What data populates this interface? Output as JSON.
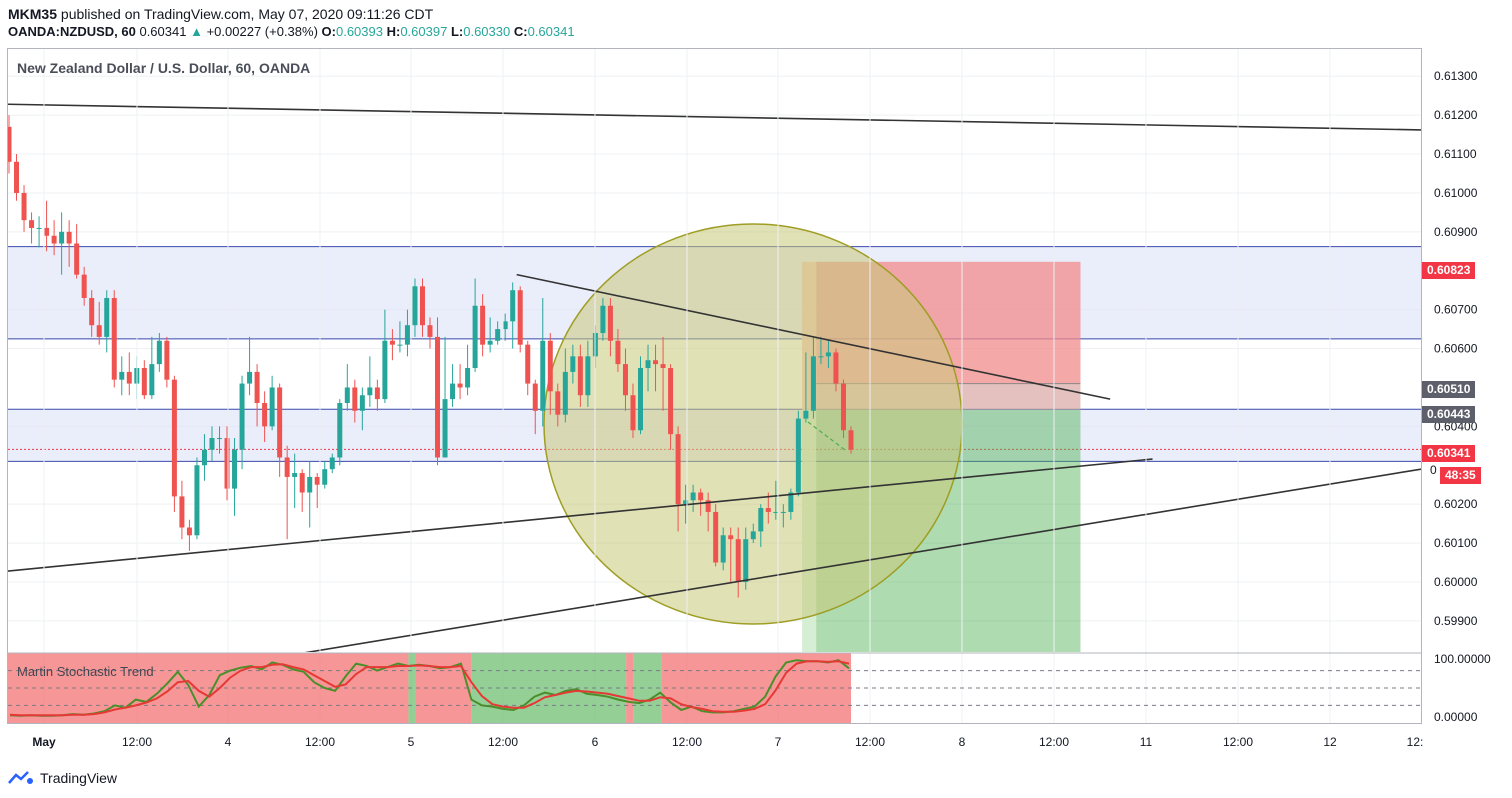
{
  "header": {
    "publisher": "MKM35",
    "published_text": "published on TradingView.com, May 07, 2020 09:11:26 CDT",
    "symbol": "OANDA:NZDUSD, 60",
    "last_price": "0.60341",
    "change_icon": "triangle-up",
    "change": "+0.00227 (+0.38%)",
    "o_label": "O:",
    "o_value": "0.60393",
    "h_label": "H:",
    "h_value": "0.60397",
    "l_label": "L:",
    "l_value": "0.60330",
    "c_label": "C:",
    "c_value": "0.60341"
  },
  "pane_title": "New Zealand Dollar / U.S. Dollar, 60, OANDA",
  "indicator": {
    "name": "Martin Stochastic Trend",
    "scale_labels": [
      "100.00000",
      "0.00000"
    ]
  },
  "price_tags": {
    "stop": "0.60823",
    "entry": "0.60510",
    "level": "0.60443",
    "current": "0.60341",
    "countdown": "48:35",
    "hidden_partial": "0"
  },
  "footer": {
    "brand": "TradingView"
  },
  "colors": {
    "up": "#26a69a",
    "down": "#ef5350",
    "stop_zone": "#f28b8b",
    "target_zone": "#4caf50",
    "zone_band": "#dfe3f7",
    "circle_fill": "#c9c87a",
    "ind_red": "#f46a6a",
    "ind_green": "#66bb6a",
    "tag_red": "#f23645",
    "tag_gray": "#5d606b"
  },
  "chart_data": {
    "type": "candlestick",
    "title": "New Zealand Dollar / U.S. Dollar, 60, OANDA",
    "timeframe": "60",
    "x_ticks": [
      "May",
      "12:00",
      "4",
      "12:00",
      "5",
      "12:00",
      "6",
      "12:00",
      "7",
      "12:00",
      "8",
      "12:00",
      "11",
      "12:00",
      "12",
      "12:"
    ],
    "y_ticks": [
      0.599,
      0.6,
      0.601,
      0.602,
      0.604,
      0.606,
      0.607,
      0.609,
      0.61,
      0.611,
      0.612,
      0.613
    ],
    "y_tick_labels": [
      "0.59900",
      "0.60000",
      "0.60100",
      "0.60200",
      "0.60400",
      "0.60600",
      "0.60700",
      "0.60900",
      "0.61000",
      "0.61100",
      "0.61200",
      "0.61300"
    ],
    "ylim": [
      0.5982,
      0.6137
    ],
    "candles": [
      [
        0.6117,
        0.6108,
        0.612,
        0.6105
      ],
      [
        0.6108,
        0.61,
        0.611,
        0.6098
      ],
      [
        0.61,
        0.6093,
        0.6102,
        0.609
      ],
      [
        0.6093,
        0.6091,
        0.6095,
        0.6087
      ],
      [
        0.6091,
        0.6091,
        0.6094,
        0.6086
      ],
      [
        0.6091,
        0.6089,
        0.6098,
        0.6085
      ],
      [
        0.6089,
        0.6087,
        0.6093,
        0.6084
      ],
      [
        0.6087,
        0.609,
        0.6095,
        0.6079
      ],
      [
        0.609,
        0.6087,
        0.6093,
        0.6081
      ],
      [
        0.6087,
        0.6079,
        0.6092,
        0.6078
      ],
      [
        0.6079,
        0.6073,
        0.6081,
        0.6071
      ],
      [
        0.6073,
        0.6066,
        0.6075,
        0.6063
      ],
      [
        0.6066,
        0.6063,
        0.6072,
        0.6061
      ],
      [
        0.6063,
        0.6073,
        0.6075,
        0.6059
      ],
      [
        0.6073,
        0.6052,
        0.6075,
        0.605
      ],
      [
        0.6052,
        0.6054,
        0.6058,
        0.6048
      ],
      [
        0.6054,
        0.6051,
        0.6059,
        0.6048
      ],
      [
        0.6051,
        0.6055,
        0.6058,
        0.6047
      ],
      [
        0.6055,
        0.6048,
        0.6057,
        0.6047
      ],
      [
        0.6048,
        0.6056,
        0.6063,
        0.6047
      ],
      [
        0.6056,
        0.6062,
        0.6064,
        0.6054
      ],
      [
        0.6062,
        0.6052,
        0.6063,
        0.605
      ],
      [
        0.6052,
        0.6022,
        0.6053,
        0.6018
      ],
      [
        0.6022,
        0.6014,
        0.6026,
        0.6011
      ],
      [
        0.6014,
        0.6012,
        0.6016,
        0.6008
      ],
      [
        0.6012,
        0.603,
        0.6032,
        0.6011
      ],
      [
        0.603,
        0.6034,
        0.6038,
        0.6026
      ],
      [
        0.6034,
        0.6037,
        0.604,
        0.6031
      ],
      [
        0.6037,
        0.6037,
        0.604,
        0.6033
      ],
      [
        0.6037,
        0.6024,
        0.604,
        0.6021
      ],
      [
        0.6024,
        0.6034,
        0.6037,
        0.6017
      ],
      [
        0.6034,
        0.6051,
        0.6053,
        0.6029
      ],
      [
        0.6051,
        0.6054,
        0.6063,
        0.6048
      ],
      [
        0.6054,
        0.6046,
        0.6056,
        0.604
      ],
      [
        0.6046,
        0.604,
        0.6049,
        0.6036
      ],
      [
        0.604,
        0.605,
        0.6053,
        0.6039
      ],
      [
        0.605,
        0.6032,
        0.6051,
        0.6027
      ],
      [
        0.6032,
        0.6027,
        0.6035,
        0.6011
      ],
      [
        0.6027,
        0.6028,
        0.6033,
        0.6019
      ],
      [
        0.6028,
        0.6023,
        0.6029,
        0.6018
      ],
      [
        0.6023,
        0.6027,
        0.6031,
        0.6014
      ],
      [
        0.6027,
        0.6025,
        0.6028,
        0.6019
      ],
      [
        0.6025,
        0.6029,
        0.6031,
        0.6024
      ],
      [
        0.6029,
        0.6032,
        0.6033,
        0.6028
      ],
      [
        0.6032,
        0.6046,
        0.6047,
        0.603
      ],
      [
        0.6046,
        0.605,
        0.6056,
        0.6044
      ],
      [
        0.605,
        0.6044,
        0.6052,
        0.6041
      ],
      [
        0.6044,
        0.6048,
        0.605,
        0.6039
      ],
      [
        0.6048,
        0.605,
        0.6058,
        0.6045
      ],
      [
        0.605,
        0.6047,
        0.6052,
        0.6044
      ],
      [
        0.6047,
        0.6062,
        0.607,
        0.6046
      ],
      [
        0.6062,
        0.6061,
        0.6065,
        0.6057
      ],
      [
        0.6061,
        0.6061,
        0.6067,
        0.6059
      ],
      [
        0.6061,
        0.6066,
        0.607,
        0.6058
      ],
      [
        0.6066,
        0.6076,
        0.6078,
        0.6063
      ],
      [
        0.6076,
        0.6066,
        0.6078,
        0.6063
      ],
      [
        0.6066,
        0.6063,
        0.6068,
        0.606
      ],
      [
        0.6063,
        0.6032,
        0.6068,
        0.603
      ],
      [
        0.6032,
        0.6047,
        0.6063,
        0.6033
      ],
      [
        0.6047,
        0.6051,
        0.6056,
        0.6045
      ],
      [
        0.6051,
        0.605,
        0.6056,
        0.6047
      ],
      [
        0.605,
        0.6055,
        0.6061,
        0.6048
      ],
      [
        0.6055,
        0.6071,
        0.6078,
        0.6054
      ],
      [
        0.6071,
        0.6061,
        0.6074,
        0.6058
      ],
      [
        0.6061,
        0.6062,
        0.6068,
        0.6059
      ],
      [
        0.6062,
        0.6065,
        0.6067,
        0.6061
      ],
      [
        0.6065,
        0.6067,
        0.6069,
        0.6062
      ],
      [
        0.6067,
        0.6075,
        0.6077,
        0.606
      ],
      [
        0.6075,
        0.6061,
        0.6076,
        0.6059
      ],
      [
        0.6061,
        0.6051,
        0.6062,
        0.6048
      ],
      [
        0.6051,
        0.6044,
        0.6052,
        0.6038
      ],
      [
        0.6044,
        0.6062,
        0.6073,
        0.604
      ],
      [
        0.6062,
        0.6049,
        0.6064,
        0.6043
      ],
      [
        0.6049,
        0.6043,
        0.6051,
        0.604
      ],
      [
        0.6043,
        0.6054,
        0.606,
        0.6041
      ],
      [
        0.6054,
        0.6058,
        0.6061,
        0.6051
      ],
      [
        0.6058,
        0.6048,
        0.6061,
        0.6045
      ],
      [
        0.6048,
        0.6058,
        0.6062,
        0.6045
      ],
      [
        0.6058,
        0.6064,
        0.6066,
        0.6055
      ],
      [
        0.6064,
        0.6071,
        0.6073,
        0.6062
      ],
      [
        0.6071,
        0.6062,
        0.6073,
        0.6058
      ],
      [
        0.6062,
        0.6056,
        0.6065,
        0.6054
      ],
      [
        0.6056,
        0.6048,
        0.606,
        0.6044
      ],
      [
        0.6048,
        0.6039,
        0.6051,
        0.6037
      ],
      [
        0.6039,
        0.6055,
        0.6058,
        0.6038
      ],
      [
        0.6055,
        0.6057,
        0.6061,
        0.6049
      ],
      [
        0.6057,
        0.6056,
        0.6061,
        0.6049
      ],
      [
        0.6056,
        0.6055,
        0.6063,
        0.6044
      ],
      [
        0.6055,
        0.6038,
        0.6056,
        0.6034
      ],
      [
        0.6038,
        0.602,
        0.604,
        0.6013
      ],
      [
        0.602,
        0.6021,
        0.6025,
        0.6015
      ],
      [
        0.6021,
        0.6023,
        0.6025,
        0.6018
      ],
      [
        0.6023,
        0.6021,
        0.6024,
        0.6017
      ],
      [
        0.6021,
        0.6018,
        0.6023,
        0.6013
      ],
      [
        0.6018,
        0.6005,
        0.602,
        0.6004
      ],
      [
        0.6005,
        0.6012,
        0.6014,
        0.6003
      ],
      [
        0.6012,
        0.6011,
        0.6014,
        0.6
      ],
      [
        0.6011,
        0.6,
        0.6014,
        0.5996
      ],
      [
        0.6,
        0.6011,
        0.6014,
        0.5998
      ],
      [
        0.6011,
        0.6013,
        0.6015,
        0.601
      ],
      [
        0.6013,
        0.6019,
        0.602,
        0.6009
      ],
      [
        0.6019,
        0.6018,
        0.6023,
        0.6015
      ],
      [
        0.6018,
        0.6018,
        0.6026,
        0.6016
      ],
      [
        0.6018,
        0.6018,
        0.602,
        0.6014
      ],
      [
        0.6018,
        0.6023,
        0.6024,
        0.6016
      ],
      [
        0.6023,
        0.6042,
        0.6044,
        0.6022
      ],
      [
        0.6042,
        0.6044,
        0.6059,
        0.6041
      ],
      [
        0.6044,
        0.6058,
        0.6063,
        0.6042
      ],
      [
        0.6058,
        0.6058,
        0.6063,
        0.6056
      ],
      [
        0.6058,
        0.6059,
        0.6062,
        0.6055
      ],
      [
        0.6059,
        0.6051,
        0.606,
        0.6049
      ],
      [
        0.6051,
        0.6039,
        0.6052,
        0.6037
      ],
      [
        0.6039,
        0.6034,
        0.604,
        0.6033
      ]
    ],
    "candles_format": "[open, close, high, low]",
    "resistance_band_upper": [
      0.60862,
      0.60625
    ],
    "resistance_band_lower": [
      0.60444,
      0.6031
    ],
    "trendlines": [
      {
        "from": [
          0,
          0.61228
        ],
        "to": [
          1.0,
          0.61162
        ]
      },
      {
        "from": [
          0,
          0.60028
        ],
        "to": [
          0.81,
          0.60316
        ]
      },
      {
        "from": [
          0.21,
          0.59818
        ],
        "to": [
          1.0,
          0.6029
        ]
      },
      {
        "from": [
          0.36,
          0.6079
        ],
        "to": [
          0.78,
          0.6047
        ]
      }
    ],
    "position": {
      "type": "short",
      "stop": 0.60823,
      "entry": 0.6051,
      "entry_alt": 0.60443,
      "target": 0.59818
    },
    "indicator_series": {
      "name": "Martin Stochastic Trend",
      "ylim": [
        0,
        100
      ],
      "k": [
        3,
        2,
        3,
        2,
        2,
        3,
        5,
        4,
        6,
        10,
        20,
        16,
        30,
        26,
        40,
        58,
        78,
        55,
        18,
        38,
        72,
        80,
        85,
        88,
        82,
        94,
        90,
        82,
        78,
        60,
        50,
        45,
        70,
        92,
        88,
        80,
        86,
        92,
        88,
        90,
        88,
        84,
        86,
        92,
        30,
        20,
        18,
        14,
        12,
        20,
        35,
        42,
        38,
        45,
        48,
        40,
        38,
        35,
        30,
        26,
        24,
        30,
        42,
        25,
        12,
        18,
        10,
        8,
        8,
        10,
        14,
        18,
        35,
        70,
        94,
        98,
        96,
        96,
        94,
        98,
        84
      ],
      "d": [
        4,
        3,
        3,
        3,
        3,
        3,
        4,
        4,
        5,
        8,
        13,
        16,
        20,
        25,
        32,
        44,
        60,
        62,
        45,
        35,
        50,
        68,
        80,
        86,
        86,
        90,
        91,
        86,
        82,
        72,
        62,
        52,
        56,
        74,
        86,
        86,
        86,
        88,
        88,
        89,
        88,
        86,
        86,
        88,
        60,
        36,
        22,
        18,
        16,
        16,
        24,
        34,
        38,
        42,
        45,
        44,
        42,
        40,
        36,
        32,
        28,
        28,
        34,
        32,
        22,
        17,
        14,
        10,
        9,
        9,
        11,
        14,
        22,
        46,
        76,
        92,
        96,
        96,
        95,
        96,
        92
      ],
      "levels": [
        80,
        50,
        20
      ],
      "trend_segments": [
        {
          "from": 0.0,
          "to": 0.285,
          "color": "red"
        },
        {
          "from": 0.285,
          "to": 0.29,
          "color": "green"
        },
        {
          "from": 0.29,
          "to": 0.33,
          "color": "red"
        },
        {
          "from": 0.33,
          "to": 0.44,
          "color": "green"
        },
        {
          "from": 0.44,
          "to": 0.445,
          "color": "red"
        },
        {
          "from": 0.445,
          "to": 0.465,
          "color": "green"
        },
        {
          "from": 0.465,
          "to": 0.6,
          "color": "red"
        }
      ]
    }
  }
}
